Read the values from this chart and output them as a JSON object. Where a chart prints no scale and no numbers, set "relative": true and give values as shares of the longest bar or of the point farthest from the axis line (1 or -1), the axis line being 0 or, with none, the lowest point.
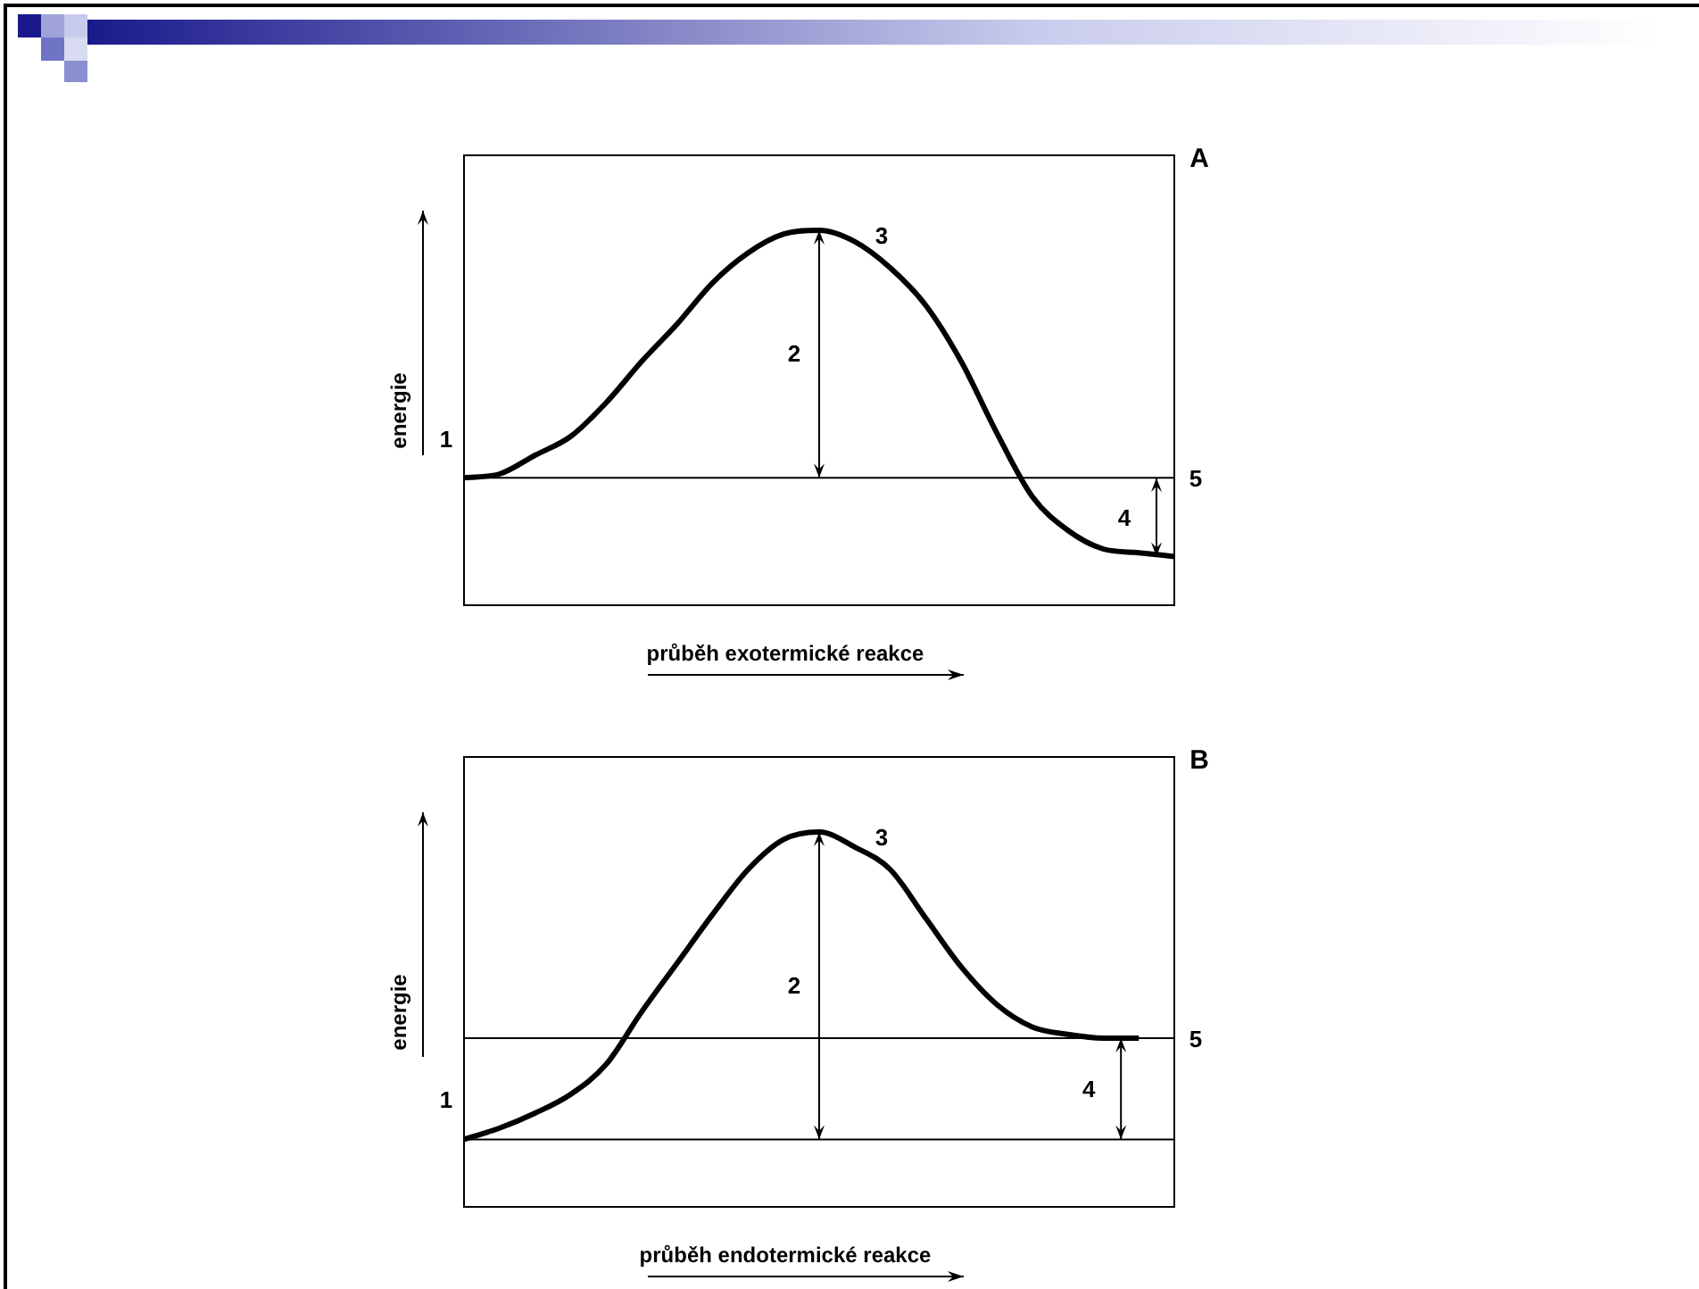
{
  "chart_data": [
    {
      "type": "line",
      "xlabel": "průběh exotermické reakce",
      "ylabel": "energie",
      "relative": true,
      "tick_labels": false,
      "marker": "none",
      "line_style": "solid",
      "categories": [
        null,
        null,
        null,
        null,
        null,
        null,
        null,
        null,
        null,
        null,
        null,
        null,
        null,
        null,
        null,
        null,
        null,
        null,
        null,
        null,
        null
      ],
      "series": [
        {
          "color": "#000000",
          "values": [
            0.34,
            0.35,
            0.4,
            0.45,
            0.54,
            0.65,
            0.75,
            0.86,
            0.94,
            0.99,
            1.0,
            0.97,
            0.9,
            0.8,
            0.65,
            0.46,
            0.29,
            0.2,
            0.15,
            0.14,
            0.13
          ]
        }
      ],
      "ref_lines": [
        {
          "axis": "y",
          "value": 0.34,
          "label": null
        }
      ],
      "annotations": [
        "A",
        "1",
        "2",
        "3",
        "4",
        "5"
      ]
    },
    {
      "type": "line",
      "xlabel": "průběh endotermické reakce",
      "ylabel": "energie",
      "relative": true,
      "tick_labels": false,
      "marker": "none",
      "line_style": "solid",
      "categories": [
        null,
        null,
        null,
        null,
        null,
        null,
        null,
        null,
        null,
        null,
        null,
        null,
        null,
        null,
        null,
        null,
        null,
        null,
        null,
        null,
        null
      ],
      "series": [
        {
          "color": "#000000",
          "values": [
            0.18,
            0.21,
            0.25,
            0.3,
            0.38,
            0.52,
            0.65,
            0.78,
            0.9,
            0.98,
            1.0,
            0.96,
            0.9,
            0.77,
            0.64,
            0.54,
            0.48,
            0.46,
            0.45,
            0.45,
            null
          ]
        }
      ],
      "ref_lines": [
        {
          "axis": "y",
          "value": 0.18,
          "label": null
        },
        {
          "axis": "y",
          "value": 0.45,
          "label": null
        }
      ],
      "annotations": [
        "B",
        "1",
        "2",
        "3",
        "4",
        "5"
      ]
    }
  ]
}
